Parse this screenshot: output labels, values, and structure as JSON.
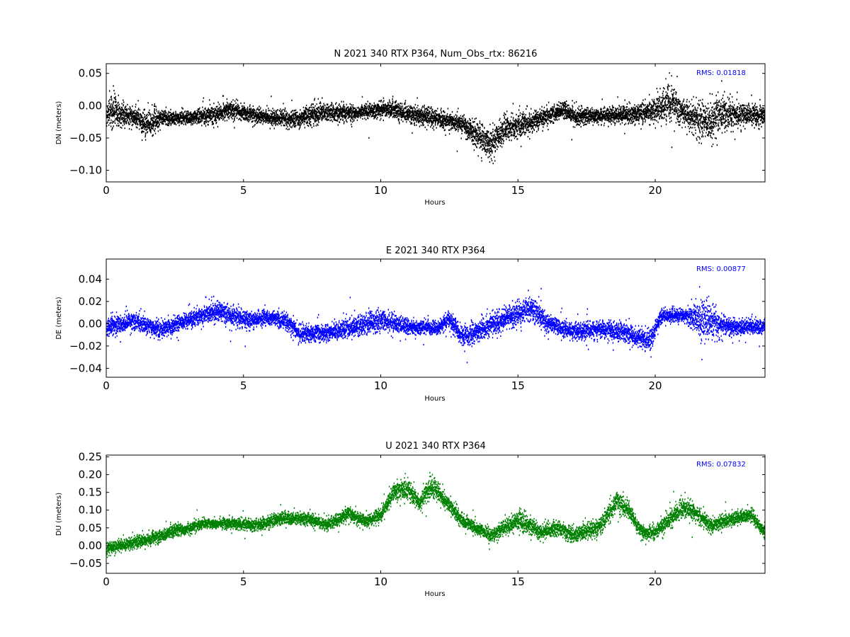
{
  "chart_data": [
    {
      "type": "scatter",
      "title": "N 2021 340 RTX  P364, Num_Obs_rtx: 86216",
      "xlabel": "Hours",
      "ylabel": "DN (meters)",
      "xlim": [
        0,
        24
      ],
      "ylim": [
        -0.118,
        0.065
      ],
      "xticks": [
        0,
        5,
        10,
        15,
        20
      ],
      "xtick_labels": [
        "0",
        "5",
        "10",
        "15",
        "20"
      ],
      "yticks": [
        -0.1,
        -0.05,
        0.0,
        0.05
      ],
      "ytick_labels": [
        "−0.10",
        "−0.05",
        "0.00",
        "0.05"
      ],
      "rms_label": "RMS:  0.01818",
      "color": "#000000",
      "annotation_color": "#0000ff",
      "trend": {
        "hours": [
          0,
          0.2,
          0.5,
          1.0,
          1.4,
          2.0,
          3.0,
          4.0,
          4.5,
          5.0,
          6.0,
          7.0,
          7.5,
          8.0,
          9.0,
          10.0,
          10.5,
          11.0,
          12.0,
          13.0,
          13.5,
          14.0,
          14.5,
          15.0,
          16.0,
          16.7,
          17.0,
          18.0,
          19.0,
          20.0,
          20.5,
          21.0,
          21.8,
          22.5,
          23.0,
          24.0
        ],
        "center": [
          -0.012,
          -0.005,
          -0.012,
          -0.015,
          -0.028,
          -0.018,
          -0.018,
          -0.012,
          -0.005,
          -0.01,
          -0.018,
          -0.02,
          -0.012,
          -0.01,
          -0.01,
          -0.005,
          -0.005,
          -0.012,
          -0.018,
          -0.028,
          -0.045,
          -0.06,
          -0.035,
          -0.03,
          -0.015,
          -0.005,
          -0.015,
          -0.015,
          -0.012,
          -0.008,
          0.01,
          -0.01,
          -0.025,
          -0.01,
          -0.012,
          -0.015
        ],
        "spread": [
          0.012,
          0.025,
          0.015,
          0.012,
          0.02,
          0.01,
          0.009,
          0.012,
          0.012,
          0.01,
          0.01,
          0.012,
          0.014,
          0.012,
          0.01,
          0.01,
          0.012,
          0.012,
          0.011,
          0.012,
          0.02,
          0.022,
          0.015,
          0.016,
          0.012,
          0.01,
          0.012,
          0.01,
          0.012,
          0.016,
          0.028,
          0.014,
          0.028,
          0.022,
          0.016,
          0.012
        ]
      }
    },
    {
      "type": "scatter",
      "title": "E 2021 340 RTX  P364",
      "xlabel": "Hours",
      "ylabel": "DE (meters)",
      "xlim": [
        0,
        24
      ],
      "ylim": [
        -0.048,
        0.058
      ],
      "xticks": [
        0,
        5,
        10,
        15,
        20
      ],
      "xtick_labels": [
        "0",
        "5",
        "10",
        "15",
        "20"
      ],
      "yticks": [
        -0.04,
        -0.02,
        0.0,
        0.02,
        0.04
      ],
      "ytick_labels": [
        "−0.04",
        "−0.02",
        "0.00",
        "0.02",
        "0.04"
      ],
      "rms_label": "RMS:  0.00877",
      "color": "#0000ff",
      "annotation_color": "#0000ff",
      "trend": {
        "hours": [
          0,
          1.0,
          2.0,
          3.0,
          4.0,
          5.0,
          6.0,
          6.5,
          7.0,
          8.0,
          9.0,
          10.0,
          11.0,
          12.0,
          12.5,
          13.0,
          14.0,
          15.0,
          15.5,
          16.0,
          17.0,
          18.0,
          19.0,
          19.8,
          20.2,
          21.0,
          21.8,
          22.5,
          23.0,
          24.0
        ],
        "center": [
          -0.002,
          0.003,
          -0.005,
          0.004,
          0.012,
          0.004,
          0.006,
          0.004,
          -0.008,
          -0.008,
          -0.002,
          0.003,
          -0.002,
          -0.003,
          0.004,
          -0.012,
          0.0,
          0.01,
          0.015,
          0.002,
          -0.006,
          -0.004,
          -0.008,
          -0.015,
          0.008,
          0.008,
          0.005,
          -0.002,
          -0.002,
          -0.002
        ],
        "spread": [
          0.007,
          0.007,
          0.006,
          0.006,
          0.008,
          0.007,
          0.006,
          0.006,
          0.007,
          0.006,
          0.008,
          0.009,
          0.006,
          0.005,
          0.006,
          0.008,
          0.009,
          0.01,
          0.01,
          0.007,
          0.006,
          0.007,
          0.008,
          0.007,
          0.006,
          0.005,
          0.016,
          0.008,
          0.006,
          0.006
        ]
      }
    },
    {
      "type": "scatter",
      "title": "U 2021 340 RTX  P364",
      "xlabel": "Hours",
      "ylabel": "DU (meters)",
      "xlim": [
        0,
        24
      ],
      "ylim": [
        -0.078,
        0.255
      ],
      "xticks": [
        0,
        5,
        10,
        15,
        20
      ],
      "xtick_labels": [
        "0",
        "5",
        "10",
        "15",
        "20"
      ],
      "yticks": [
        -0.05,
        0.0,
        0.05,
        0.1,
        0.15,
        0.2,
        0.25
      ],
      "ytick_labels": [
        "−0.05",
        "0.00",
        "0.05",
        "0.10",
        "0.15",
        "0.20",
        "0.25"
      ],
      "rms_label": "RMS:  0.07832",
      "color": "#008000",
      "annotation_color": "#0000ff",
      "trend": {
        "hours": [
          0,
          1.0,
          2.0,
          2.5,
          3.0,
          3.5,
          4.5,
          5.5,
          6.5,
          7.5,
          8.0,
          8.8,
          9.5,
          10.0,
          10.5,
          11.0,
          11.4,
          11.8,
          12.2,
          13.0,
          14.0,
          15.0,
          15.8,
          16.5,
          17.0,
          18.0,
          18.6,
          19.0,
          19.5,
          20.0,
          21.0,
          21.5,
          22.0,
          23.0,
          23.5,
          24.0
        ],
        "center": [
          -0.005,
          0.01,
          0.03,
          0.045,
          0.05,
          0.065,
          0.065,
          0.06,
          0.08,
          0.075,
          0.06,
          0.09,
          0.07,
          0.09,
          0.16,
          0.16,
          0.12,
          0.17,
          0.14,
          0.07,
          0.03,
          0.075,
          0.04,
          0.05,
          0.03,
          0.06,
          0.13,
          0.1,
          0.04,
          0.04,
          0.11,
          0.09,
          0.06,
          0.08,
          0.09,
          0.03
        ],
        "spread": [
          0.015,
          0.015,
          0.015,
          0.015,
          0.014,
          0.012,
          0.014,
          0.015,
          0.016,
          0.015,
          0.015,
          0.018,
          0.015,
          0.016,
          0.022,
          0.025,
          0.02,
          0.03,
          0.02,
          0.016,
          0.016,
          0.025,
          0.018,
          0.02,
          0.02,
          0.02,
          0.025,
          0.02,
          0.016,
          0.018,
          0.025,
          0.02,
          0.018,
          0.016,
          0.016,
          0.015
        ]
      }
    }
  ]
}
